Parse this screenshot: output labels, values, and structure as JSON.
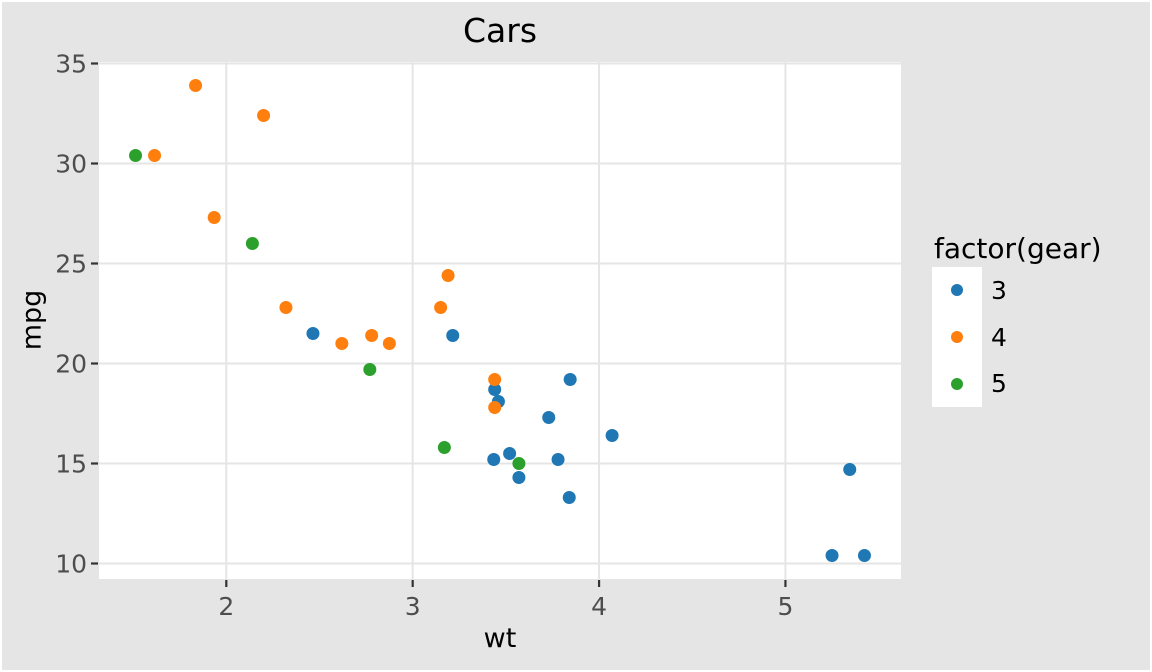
{
  "figure": {
    "background_color": "#e5e5e5",
    "panel_color": "#ffffff",
    "grid_color": "#e5e5e5",
    "tick_mark_color": "#333333",
    "tick_label_color": "#4d4d4d",
    "text_color": "#000000",
    "edge_color": "#ffffff"
  },
  "chart_data": {
    "type": "scatter",
    "title": "Cars",
    "xlabel": "wt",
    "ylabel": "mpg",
    "xlim": [
      1.317,
      5.62
    ],
    "ylim": [
      9.225,
      35.075
    ],
    "xticks": [
      2,
      3,
      4,
      5
    ],
    "yticks": [
      10,
      15,
      20,
      25,
      30,
      35
    ],
    "grid": "major-only",
    "point_radius_px": 6.5,
    "legend": {
      "title": "factor(gear)",
      "position": "right",
      "entries": [
        {
          "label": "3",
          "color": "#1f77b4"
        },
        {
          "label": "4",
          "color": "#ff7f0e"
        },
        {
          "label": "5",
          "color": "#2ca02c"
        }
      ]
    },
    "series": [
      {
        "name": "3",
        "color": "#1f77b4",
        "points": [
          [
            3.215,
            21.4
          ],
          [
            3.44,
            18.7
          ],
          [
            3.46,
            18.1
          ],
          [
            3.57,
            14.3
          ],
          [
            4.07,
            16.4
          ],
          [
            3.73,
            17.3
          ],
          [
            3.78,
            15.2
          ],
          [
            5.25,
            10.4
          ],
          [
            5.424,
            10.4
          ],
          [
            5.345,
            14.7
          ],
          [
            2.465,
            21.5
          ],
          [
            3.52,
            15.5
          ],
          [
            3.435,
            15.2
          ],
          [
            3.84,
            13.3
          ],
          [
            3.845,
            19.2
          ]
        ]
      },
      {
        "name": "4",
        "color": "#ff7f0e",
        "points": [
          [
            2.62,
            21.0
          ],
          [
            2.875,
            21.0
          ],
          [
            2.32,
            22.8
          ],
          [
            3.19,
            24.4
          ],
          [
            3.15,
            22.8
          ],
          [
            3.44,
            19.2
          ],
          [
            3.44,
            17.8
          ],
          [
            2.2,
            32.4
          ],
          [
            1.615,
            30.4
          ],
          [
            1.835,
            33.9
          ],
          [
            1.935,
            27.3
          ],
          [
            2.78,
            21.4
          ]
        ]
      },
      {
        "name": "5",
        "color": "#2ca02c",
        "points": [
          [
            2.14,
            26.0
          ],
          [
            1.513,
            30.4
          ],
          [
            3.17,
            15.8
          ],
          [
            2.77,
            19.7
          ],
          [
            3.57,
            15.0
          ]
        ]
      }
    ]
  }
}
